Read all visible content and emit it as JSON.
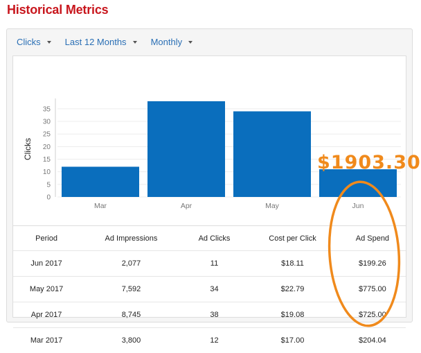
{
  "page": {
    "title": "Historical Metrics"
  },
  "toolbar": {
    "metric": "Clicks",
    "range": "Last 12 Months",
    "interval": "Monthly"
  },
  "chart_data": {
    "type": "bar",
    "categories": [
      "Mar",
      "Apr",
      "May",
      "Jun"
    ],
    "values": [
      12,
      38,
      34,
      11
    ],
    "ylabel": "Clicks",
    "xlabel": "",
    "ylim": [
      0,
      38
    ],
    "yticks": [
      0,
      5,
      10,
      15,
      20,
      25,
      30,
      35
    ],
    "bar_color": "#0a6ebd",
    "grid": true
  },
  "table": {
    "columns": [
      "Period",
      "Ad Impressions",
      "Ad Clicks",
      "Cost per Click",
      "Ad Spend"
    ],
    "rows": [
      [
        "Jun 2017",
        "2,077",
        "11",
        "$18.11",
        "$199.26"
      ],
      [
        "May 2017",
        "7,592",
        "34",
        "$22.79",
        "$775.00"
      ],
      [
        "Apr 2017",
        "8,745",
        "38",
        "$19.08",
        "$725.00"
      ],
      [
        "Mar 2017",
        "3,800",
        "12",
        "$17.00",
        "$204.04"
      ]
    ]
  },
  "annotation": {
    "total": "$1903.30",
    "color": "#f08a1c"
  },
  "colors": {
    "title": "#c8161d",
    "link": "#2a6fb5",
    "bar": "#0a6ebd"
  }
}
